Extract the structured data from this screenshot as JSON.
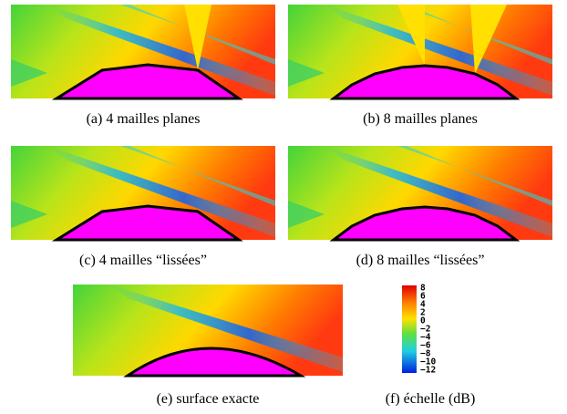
{
  "panels": [
    {
      "caption": "(a) 4 mailles planes"
    },
    {
      "caption": "(b) 8 mailles planes"
    },
    {
      "caption": "(c) 4 mailles “lissées”"
    },
    {
      "caption": "(d) 8 mailles “lissées”"
    },
    {
      "caption": "(e) surface exacte"
    }
  ],
  "colorbar": {
    "caption": "(f) échelle (dB)",
    "ticks": [
      "8",
      "6",
      "4",
      "2",
      "0",
      "−2",
      "−4",
      "−6",
      "−8",
      "−10",
      "−12"
    ]
  }
}
